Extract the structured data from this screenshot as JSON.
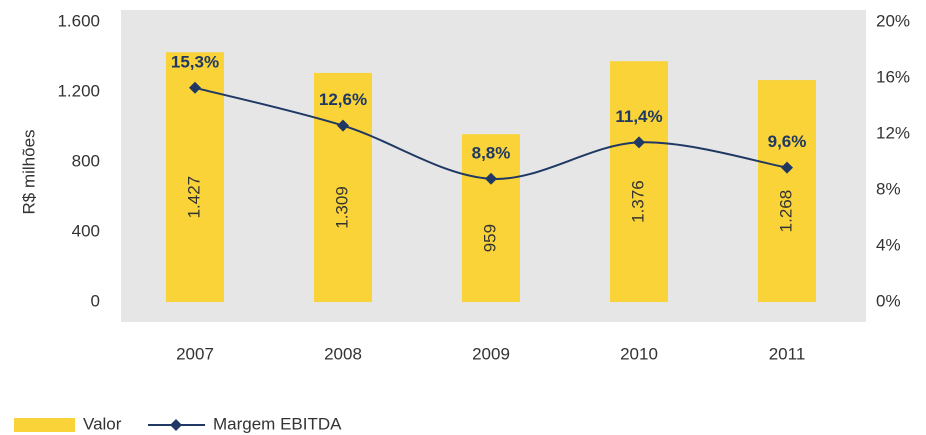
{
  "chart_data": {
    "type": "bar",
    "ylabel": "R$ milhões",
    "categories": [
      "2007",
      "2008",
      "2009",
      "2010",
      "2011"
    ],
    "series": [
      {
        "name": "Valor",
        "type": "bar",
        "color": "#f9d337",
        "values": [
          1427,
          1309,
          959,
          1376,
          1268
        ],
        "value_labels": [
          "1.427",
          "1.309",
          "959",
          "1.376",
          "1.268"
        ]
      },
      {
        "name": "Margem EBITDA",
        "type": "line",
        "axis": "y2",
        "color": "#1f3864",
        "values": [
          15.3,
          12.6,
          8.8,
          11.4,
          9.6
        ],
        "value_labels": [
          "15,3%",
          "12,6%",
          "8,8%",
          "11,4%",
          "9,6%"
        ]
      }
    ],
    "ylim": [
      0,
      1600
    ],
    "yticks": [
      0,
      400,
      800,
      {
        "value": 1200,
        "label": "1.200"
      },
      {
        "value": 1600,
        "label": "1.600"
      }
    ],
    "y2lim": [
      0,
      20
    ],
    "y2ticks": [
      {
        "value": 0,
        "label": "0%"
      },
      {
        "value": 4,
        "label": "4%"
      },
      {
        "value": 8,
        "label": "8%"
      },
      {
        "value": 12,
        "label": "12%"
      },
      {
        "value": 16,
        "label": "16%"
      },
      {
        "value": 20,
        "label": "20%"
      }
    ],
    "grid": false,
    "legend": "bottom-left"
  }
}
